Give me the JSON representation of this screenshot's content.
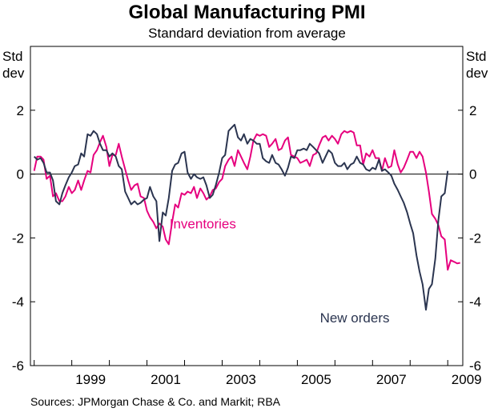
{
  "chart_data": {
    "type": "line",
    "title": "Global Manufacturing PMI",
    "subtitle": "Standard deviation from average",
    "ylabel_left": [
      "Std",
      "dev"
    ],
    "ylabel_right": [
      "Std",
      "dev"
    ],
    "ylim": [
      -6,
      4
    ],
    "yticks": [
      2,
      0,
      -2,
      -4,
      -6
    ],
    "xlim": [
      1997.9,
      2009.4
    ],
    "xticks": [
      1998,
      1999,
      2000,
      2001,
      2002,
      2003,
      2004,
      2005,
      2006,
      2007,
      2008,
      2009
    ],
    "xtick_labels": [
      {
        "year": 1999,
        "label": "1999"
      },
      {
        "year": 2001,
        "label": "2001"
      },
      {
        "year": 2003,
        "label": "2003"
      },
      {
        "year": 2005,
        "label": "2005"
      },
      {
        "year": 2007,
        "label": "2007"
      },
      {
        "year": 2009,
        "label": "2009"
      }
    ],
    "series": [
      {
        "name": "Inventories",
        "color": "#e6007e",
        "points": [
          [
            1998.0,
            0.1
          ],
          [
            1998.08,
            0.55
          ],
          [
            1998.17,
            0.55
          ],
          [
            1998.25,
            0.45
          ],
          [
            1998.33,
            -0.15
          ],
          [
            1998.42,
            -0.05
          ],
          [
            1998.5,
            -0.7
          ],
          [
            1998.58,
            -0.6
          ],
          [
            1998.67,
            -0.85
          ],
          [
            1998.75,
            -0.85
          ],
          [
            1998.83,
            -0.7
          ],
          [
            1998.92,
            -0.4
          ],
          [
            1999.0,
            -0.6
          ],
          [
            1999.08,
            -0.5
          ],
          [
            1999.17,
            -0.2
          ],
          [
            1999.25,
            -0.5
          ],
          [
            1999.33,
            -0.2
          ],
          [
            1999.42,
            0.1
          ],
          [
            1999.5,
            0.05
          ],
          [
            1999.58,
            0.6
          ],
          [
            1999.67,
            0.75
          ],
          [
            1999.75,
            1.0
          ],
          [
            1999.83,
            1.2
          ],
          [
            1999.92,
            0.85
          ],
          [
            2000.0,
            0.25
          ],
          [
            2000.08,
            0.6
          ],
          [
            2000.17,
            0.6
          ],
          [
            2000.25,
            0.95
          ],
          [
            2000.33,
            0.55
          ],
          [
            2000.42,
            0.15
          ],
          [
            2000.5,
            -0.2
          ],
          [
            2000.58,
            -0.5
          ],
          [
            2000.67,
            -0.35
          ],
          [
            2000.75,
            -0.3
          ],
          [
            2000.83,
            -0.7
          ],
          [
            2000.92,
            -0.75
          ],
          [
            2001.0,
            -1.15
          ],
          [
            2001.08,
            -1.35
          ],
          [
            2001.17,
            -1.5
          ],
          [
            2001.25,
            -1.7
          ],
          [
            2001.33,
            -1.55
          ],
          [
            2001.42,
            -1.65
          ],
          [
            2001.5,
            -2.05
          ],
          [
            2001.58,
            -2.2
          ],
          [
            2001.67,
            -1.5
          ],
          [
            2001.75,
            -0.95
          ],
          [
            2001.83,
            -1.05
          ],
          [
            2001.92,
            -0.6
          ],
          [
            2002.0,
            -0.65
          ],
          [
            2002.08,
            -0.55
          ],
          [
            2002.17,
            -0.6
          ],
          [
            2002.25,
            -0.4
          ],
          [
            2002.33,
            -0.75
          ],
          [
            2002.42,
            -0.45
          ],
          [
            2002.5,
            -0.6
          ],
          [
            2002.58,
            -0.8
          ],
          [
            2002.67,
            -0.7
          ],
          [
            2002.75,
            -0.5
          ],
          [
            2002.83,
            -0.45
          ],
          [
            2002.92,
            -0.25
          ],
          [
            2003.0,
            -0.15
          ],
          [
            2003.08,
            0.25
          ],
          [
            2003.17,
            0.45
          ],
          [
            2003.25,
            0.55
          ],
          [
            2003.33,
            0.25
          ],
          [
            2003.42,
            0.75
          ],
          [
            2003.5,
            0.55
          ],
          [
            2003.58,
            0.35
          ],
          [
            2003.67,
            0.15
          ],
          [
            2003.75,
            0.55
          ],
          [
            2003.83,
            1.05
          ],
          [
            2003.92,
            1.25
          ],
          [
            2004.0,
            1.2
          ],
          [
            2004.08,
            1.25
          ],
          [
            2004.17,
            1.2
          ],
          [
            2004.25,
            0.85
          ],
          [
            2004.33,
            0.95
          ],
          [
            2004.42,
            1.1
          ],
          [
            2004.5,
            0.75
          ],
          [
            2004.58,
            0.8
          ],
          [
            2004.67,
            1.05
          ],
          [
            2004.75,
            1.15
          ],
          [
            2004.83,
            0.6
          ],
          [
            2004.92,
            0.55
          ],
          [
            2005.0,
            0.5
          ],
          [
            2005.08,
            0.35
          ],
          [
            2005.17,
            0.4
          ],
          [
            2005.25,
            0.45
          ],
          [
            2005.33,
            0.25
          ],
          [
            2005.42,
            0.6
          ],
          [
            2005.5,
            0.65
          ],
          [
            2005.58,
            0.9
          ],
          [
            2005.67,
            1.15
          ],
          [
            2005.75,
            1.2
          ],
          [
            2005.83,
            1.05
          ],
          [
            2005.92,
            1.2
          ],
          [
            2006.0,
            1.1
          ],
          [
            2006.08,
            0.95
          ],
          [
            2006.17,
            1.25
          ],
          [
            2006.25,
            1.35
          ],
          [
            2006.33,
            1.3
          ],
          [
            2006.42,
            1.35
          ],
          [
            2006.5,
            1.3
          ],
          [
            2006.58,
            0.9
          ],
          [
            2006.67,
            0.9
          ],
          [
            2006.75,
            0.3
          ],
          [
            2006.83,
            0.65
          ],
          [
            2006.92,
            0.55
          ],
          [
            2007.0,
            0.75
          ],
          [
            2007.08,
            0.5
          ],
          [
            2007.17,
            0.5
          ],
          [
            2007.25,
            0.1
          ],
          [
            2007.33,
            0.5
          ],
          [
            2007.42,
            0.2
          ],
          [
            2007.5,
            0.25
          ],
          [
            2007.58,
            0.75
          ],
          [
            2007.67,
            0.3
          ],
          [
            2007.75,
            0.05
          ],
          [
            2007.83,
            0.2
          ],
          [
            2007.92,
            0.45
          ],
          [
            2008.0,
            0.7
          ],
          [
            2008.08,
            0.7
          ],
          [
            2008.17,
            0.5
          ],
          [
            2008.25,
            0.7
          ],
          [
            2008.33,
            0.55
          ],
          [
            2008.42,
            0.05
          ],
          [
            2008.5,
            -0.55
          ],
          [
            2008.58,
            -1.25
          ],
          [
            2008.67,
            -1.4
          ],
          [
            2008.75,
            -1.6
          ],
          [
            2008.83,
            -1.95
          ],
          [
            2008.92,
            -2.05
          ],
          [
            2009.0,
            -3.0
          ],
          [
            2009.08,
            -2.7
          ],
          [
            2009.17,
            -2.75
          ],
          [
            2009.25,
            -2.8
          ],
          [
            2009.33,
            -2.78
          ]
        ]
      },
      {
        "name": "New orders",
        "color": "#2b3550",
        "points": [
          [
            1998.0,
            0.55
          ],
          [
            1998.08,
            0.45
          ],
          [
            1998.17,
            0.5
          ],
          [
            1998.25,
            0.35
          ],
          [
            1998.33,
            0.05
          ],
          [
            1998.42,
            0.05
          ],
          [
            1998.5,
            -0.2
          ],
          [
            1998.58,
            -0.85
          ],
          [
            1998.67,
            -0.95
          ],
          [
            1998.75,
            -0.6
          ],
          [
            1998.83,
            -0.35
          ],
          [
            1998.92,
            -0.1
          ],
          [
            1999.0,
            0.05
          ],
          [
            1999.08,
            0.25
          ],
          [
            1999.17,
            0.3
          ],
          [
            1999.25,
            0.65
          ],
          [
            1999.33,
            0.55
          ],
          [
            1999.42,
            1.25
          ],
          [
            1999.5,
            1.2
          ],
          [
            1999.58,
            1.35
          ],
          [
            1999.67,
            1.25
          ],
          [
            1999.75,
            0.95
          ],
          [
            1999.83,
            0.75
          ],
          [
            1999.92,
            0.75
          ],
          [
            2000.0,
            0.55
          ],
          [
            2000.08,
            0.65
          ],
          [
            2000.17,
            0.55
          ],
          [
            2000.25,
            0.25
          ],
          [
            2000.33,
            0.15
          ],
          [
            2000.42,
            -0.55
          ],
          [
            2000.5,
            -0.75
          ],
          [
            2000.58,
            -0.95
          ],
          [
            2000.67,
            -0.85
          ],
          [
            2000.75,
            -0.95
          ],
          [
            2000.83,
            -0.9
          ],
          [
            2000.92,
            -0.8
          ],
          [
            2001.0,
            -0.75
          ],
          [
            2001.08,
            -0.4
          ],
          [
            2001.17,
            -0.7
          ],
          [
            2001.25,
            -0.85
          ],
          [
            2001.33,
            -2.1
          ],
          [
            2001.42,
            -1.2
          ],
          [
            2001.5,
            -1.3
          ],
          [
            2001.58,
            -0.75
          ],
          [
            2001.67,
            0.1
          ],
          [
            2001.75,
            0.3
          ],
          [
            2001.83,
            0.35
          ],
          [
            2001.92,
            0.65
          ],
          [
            2002.0,
            0.7
          ],
          [
            2002.08,
            0.05
          ],
          [
            2002.17,
            -0.15
          ],
          [
            2002.25,
            0.0
          ],
          [
            2002.33,
            -0.1
          ],
          [
            2002.42,
            -0.15
          ],
          [
            2002.5,
            -0.1
          ],
          [
            2002.58,
            -0.35
          ],
          [
            2002.67,
            -0.75
          ],
          [
            2002.75,
            -0.65
          ],
          [
            2002.83,
            -0.35
          ],
          [
            2002.92,
            0.05
          ],
          [
            2003.0,
            0.5
          ],
          [
            2003.08,
            0.6
          ],
          [
            2003.17,
            1.35
          ],
          [
            2003.25,
            1.45
          ],
          [
            2003.33,
            1.55
          ],
          [
            2003.42,
            1.15
          ],
          [
            2003.5,
            1.05
          ],
          [
            2003.58,
            1.25
          ],
          [
            2003.67,
            0.95
          ],
          [
            2003.75,
            1.1
          ],
          [
            2003.83,
            1.05
          ],
          [
            2003.92,
            0.95
          ],
          [
            2004.0,
            0.95
          ],
          [
            2004.08,
            0.5
          ],
          [
            2004.17,
            0.4
          ],
          [
            2004.25,
            0.35
          ],
          [
            2004.33,
            0.6
          ],
          [
            2004.42,
            0.35
          ],
          [
            2004.5,
            0.3
          ],
          [
            2004.58,
            0.15
          ],
          [
            2004.67,
            -0.05
          ],
          [
            2004.75,
            0.2
          ],
          [
            2004.83,
            0.55
          ],
          [
            2004.92,
            0.5
          ],
          [
            2005.0,
            0.75
          ],
          [
            2005.08,
            0.75
          ],
          [
            2005.17,
            0.8
          ],
          [
            2005.25,
            0.75
          ],
          [
            2005.33,
            0.95
          ],
          [
            2005.42,
            0.85
          ],
          [
            2005.5,
            0.75
          ],
          [
            2005.58,
            0.65
          ],
          [
            2005.67,
            0.35
          ],
          [
            2005.75,
            0.55
          ],
          [
            2005.83,
            0.75
          ],
          [
            2005.92,
            0.65
          ],
          [
            2006.0,
            0.35
          ],
          [
            2006.08,
            0.25
          ],
          [
            2006.17,
            0.25
          ],
          [
            2006.25,
            0.35
          ],
          [
            2006.33,
            0.15
          ],
          [
            2006.42,
            0.3
          ],
          [
            2006.5,
            0.35
          ],
          [
            2006.58,
            0.55
          ],
          [
            2006.67,
            0.35
          ],
          [
            2006.75,
            0.3
          ],
          [
            2006.83,
            0.15
          ],
          [
            2006.92,
            0.1
          ],
          [
            2007.0,
            0.2
          ],
          [
            2007.08,
            0.15
          ],
          [
            2007.17,
            0.45
          ],
          [
            2007.25,
            0.1
          ],
          [
            2007.33,
            0.15
          ],
          [
            2007.42,
            0.05
          ],
          [
            2007.5,
            -0.05
          ],
          [
            2007.58,
            -0.3
          ],
          [
            2007.67,
            -0.5
          ],
          [
            2007.75,
            -0.7
          ],
          [
            2007.83,
            -0.9
          ],
          [
            2007.92,
            -1.2
          ],
          [
            2008.0,
            -1.55
          ],
          [
            2008.08,
            -1.85
          ],
          [
            2008.17,
            -2.55
          ],
          [
            2008.25,
            -3.05
          ],
          [
            2008.33,
            -3.45
          ],
          [
            2008.42,
            -4.25
          ],
          [
            2008.5,
            -3.6
          ],
          [
            2008.58,
            -3.45
          ],
          [
            2008.67,
            -2.65
          ],
          [
            2008.75,
            -1.45
          ],
          [
            2008.83,
            -0.7
          ],
          [
            2008.92,
            -0.6
          ],
          [
            2009.0,
            0.1
          ]
        ]
      }
    ],
    "annotations": [
      {
        "text": "Inventories",
        "series": "Inventories",
        "x": 2001.6,
        "y": -1.55
      },
      {
        "text": "New orders",
        "series": "New orders",
        "x": 2005.6,
        "y": -4.5
      }
    ],
    "source": "Sources: JPMorgan Chase & Co. and Markit; RBA"
  }
}
